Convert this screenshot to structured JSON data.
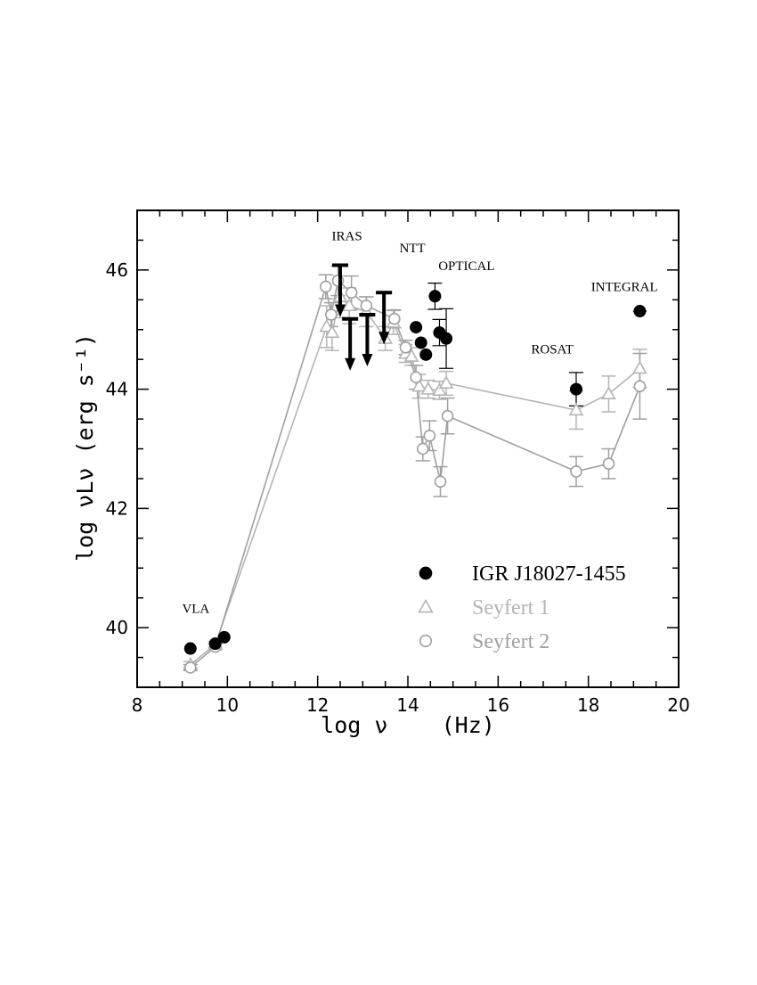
{
  "chart_data": {
    "type": "scatter",
    "xlabel": "log ν    (Hz)",
    "ylabel": "log νLν (erg s⁻¹)",
    "xlim": [
      8,
      20
    ],
    "ylim": [
      39,
      47
    ],
    "x_ticks": [
      8,
      10,
      12,
      14,
      16,
      18,
      20
    ],
    "y_ticks": [
      40,
      42,
      44,
      46
    ],
    "grid": false,
    "legend_position": "bottom-right",
    "colors": {
      "igr": "#000000",
      "sy1": "#b4b4b4",
      "sy2": "#a0a0a0"
    },
    "annotations": [
      {
        "text": "VLA",
        "x": 9.3,
        "y": 40.25
      },
      {
        "text": "IRAS",
        "x": 12.65,
        "y": 46.5
      },
      {
        "text": "NTT",
        "x": 14.1,
        "y": 46.3
      },
      {
        "text": "OPTICAL",
        "x": 15.3,
        "y": 46.0
      },
      {
        "text": "ROSAT",
        "x": 17.2,
        "y": 44.6
      },
      {
        "text": "INTEGRAL",
        "x": 18.8,
        "y": 45.65
      }
    ],
    "series": [
      {
        "name": "IGR J18027-1455",
        "marker": "filled-circle",
        "points": [
          {
            "x": 9.18,
            "y": 39.65,
            "xerr": 0.1
          },
          {
            "x": 9.73,
            "y": 39.73,
            "xerr": 0.1
          },
          {
            "x": 9.93,
            "y": 39.84,
            "xerr": 0.1
          },
          {
            "x": 14.18,
            "y": 45.04,
            "xerr": 0.1
          },
          {
            "x": 14.29,
            "y": 44.78,
            "xerr": 0.1
          },
          {
            "x": 14.4,
            "y": 44.58,
            "xerr": 0.1
          },
          {
            "x": 14.6,
            "y": 45.56,
            "yerr": 0.22
          },
          {
            "x": 14.7,
            "y": 44.95,
            "yerr": 0.22
          },
          {
            "x": 14.85,
            "y": 44.85,
            "yerr": 0.5
          },
          {
            "x": 17.73,
            "y": 44.0,
            "yerr": 0.28
          },
          {
            "x": 19.14,
            "y": 45.31,
            "xerr": 0.15
          }
        ],
        "upper_limits": [
          {
            "x": 12.5,
            "y": 46.08
          },
          {
            "x": 12.72,
            "y": 45.18
          },
          {
            "x": 13.1,
            "y": 45.25
          },
          {
            "x": 13.47,
            "y": 45.62
          }
        ]
      },
      {
        "name": "Seyfert 1",
        "marker": "open-triangle",
        "points": [
          {
            "x": 9.18,
            "y": 39.38,
            "yerr": 0.05
          },
          {
            "x": 9.73,
            "y": 39.72,
            "yerr": 0.05
          },
          {
            "x": 12.2,
            "y": 45.05,
            "yerr": 0.35
          },
          {
            "x": 12.32,
            "y": 44.95,
            "yerr": 0.3
          },
          {
            "x": 12.5,
            "y": 45.55,
            "yerr": 0.35
          },
          {
            "x": 12.7,
            "y": 45.4,
            "yerr": 0.3
          },
          {
            "x": 13.08,
            "y": 45.3,
            "yerr": 0.25
          },
          {
            "x": 13.5,
            "y": 44.85,
            "yerr": 0.2
          },
          {
            "x": 13.68,
            "y": 45.12,
            "yerr": 0.2
          },
          {
            "x": 13.95,
            "y": 44.6,
            "yerr": 0.15
          },
          {
            "x": 14.08,
            "y": 44.55,
            "yerr": 0.15
          },
          {
            "x": 14.25,
            "y": 44.05,
            "yerr": 0.2
          },
          {
            "x": 14.45,
            "y": 44.0,
            "yerr": 0.15
          },
          {
            "x": 14.7,
            "y": 43.98,
            "yerr": 0.15
          },
          {
            "x": 14.85,
            "y": 44.1,
            "yerr": 0.2
          },
          {
            "x": 17.73,
            "y": 43.65,
            "yerr": 0.32
          },
          {
            "x": 18.45,
            "y": 43.92,
            "yerr": 0.3
          },
          {
            "x": 19.14,
            "y": 44.35,
            "yerr": 0.32
          }
        ]
      },
      {
        "name": "Seyfert 2",
        "marker": "open-circle",
        "points": [
          {
            "x": 9.18,
            "y": 39.33,
            "yerr": 0.05
          },
          {
            "x": 9.73,
            "y": 39.68,
            "yerr": 0.05
          },
          {
            "x": 12.18,
            "y": 45.72,
            "yerr": 0.2
          },
          {
            "x": 12.3,
            "y": 45.25,
            "yerr": 0.2
          },
          {
            "x": 12.45,
            "y": 45.82,
            "yerr": 0.25
          },
          {
            "x": 12.75,
            "y": 45.62,
            "yerr": 0.28
          },
          {
            "x": 13.08,
            "y": 45.4,
            "yerr": 0.15
          },
          {
            "x": 13.7,
            "y": 45.18,
            "yerr": 0.15
          },
          {
            "x": 13.95,
            "y": 44.7,
            "yerr": 0.12
          },
          {
            "x": 14.18,
            "y": 44.2,
            "yerr": 0.2
          },
          {
            "x": 14.33,
            "y": 43.0,
            "yerr": 0.2
          },
          {
            "x": 14.48,
            "y": 43.22,
            "yerr": 0.25
          },
          {
            "x": 14.72,
            "y": 42.45,
            "yerr": 0.25
          },
          {
            "x": 14.88,
            "y": 43.55,
            "yerr": 0.3
          },
          {
            "x": 17.73,
            "y": 42.62,
            "yerr": 0.25
          },
          {
            "x": 18.45,
            "y": 42.75,
            "yerr": 0.25
          },
          {
            "x": 19.14,
            "y": 44.05,
            "yerr": 0.55
          }
        ]
      }
    ]
  }
}
